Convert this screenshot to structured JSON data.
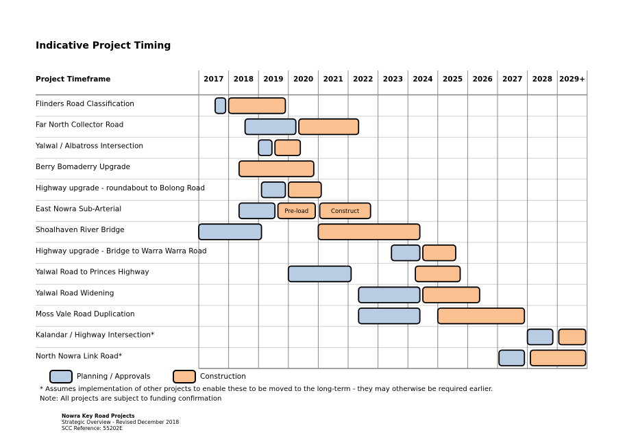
{
  "title": "Indicative Project Timing",
  "colors": {
    "planning": "#b8cce4",
    "construction": "#fac090",
    "grid": "#888888",
    "border": "#000000"
  },
  "chart_data": {
    "type": "gantt",
    "row_header": "Project Timeframe",
    "columns": [
      "2017",
      "2018",
      "2019",
      "2020",
      "2021",
      "2022",
      "2023",
      "2024",
      "2025",
      "2026",
      "2027",
      "2028",
      "2029+"
    ],
    "x_range": [
      2017,
      2030
    ],
    "phases": [
      {
        "key": "planning",
        "label": "Planning / Approvals"
      },
      {
        "key": "construction",
        "label": "Construction"
      }
    ],
    "tasks": [
      {
        "name": "Flinders Road Classification",
        "bars": [
          {
            "phase": "planning",
            "start": 2017.55,
            "end": 2017.9
          },
          {
            "phase": "construction",
            "start": 2018.0,
            "end": 2019.9
          }
        ]
      },
      {
        "name": "Far North Collector Road",
        "bars": [
          {
            "phase": "planning",
            "start": 2018.55,
            "end": 2020.25
          },
          {
            "phase": "construction",
            "start": 2020.35,
            "end": 2022.35
          }
        ]
      },
      {
        "name": "Yalwal / Albatross Intersection",
        "bars": [
          {
            "phase": "planning",
            "start": 2019.0,
            "end": 2019.45
          },
          {
            "phase": "construction",
            "start": 2019.55,
            "end": 2020.4
          }
        ]
      },
      {
        "name": "Berry Bomaderry Upgrade",
        "bars": [
          {
            "phase": "construction",
            "start": 2018.35,
            "end": 2020.85
          }
        ]
      },
      {
        "name": "Highway upgrade - roundabout to Bolong Road",
        "bars": [
          {
            "phase": "planning",
            "start": 2019.1,
            "end": 2019.9
          },
          {
            "phase": "construction",
            "start": 2020.0,
            "end": 2021.1
          }
        ]
      },
      {
        "name": "East Nowra Sub-Arterial",
        "bars": [
          {
            "phase": "planning",
            "start": 2018.35,
            "end": 2019.55
          },
          {
            "phase": "construction",
            "start": 2019.65,
            "end": 2020.9,
            "label": "Pre-load"
          },
          {
            "phase": "construction",
            "start": 2021.05,
            "end": 2022.75,
            "label": "Construct"
          }
        ]
      },
      {
        "name": "Shoalhaven River Bridge",
        "bars": [
          {
            "phase": "planning",
            "start": 2017.0,
            "end": 2019.1
          },
          {
            "phase": "construction",
            "start": 2021.0,
            "end": 2024.4
          }
        ]
      },
      {
        "name": "Highway upgrade - Bridge to Warra Warra Road",
        "bars": [
          {
            "phase": "planning",
            "start": 2023.45,
            "end": 2024.4
          },
          {
            "phase": "construction",
            "start": 2024.5,
            "end": 2025.6
          }
        ]
      },
      {
        "name": "Yalwal Road to Princes Highway",
        "bars": [
          {
            "phase": "planning",
            "start": 2020.0,
            "end": 2022.1
          },
          {
            "phase": "construction",
            "start": 2024.25,
            "end": 2025.75
          }
        ]
      },
      {
        "name": "Yalwal Road Widening",
        "bars": [
          {
            "phase": "planning",
            "start": 2022.35,
            "end": 2024.4
          },
          {
            "phase": "construction",
            "start": 2024.5,
            "end": 2026.4
          }
        ]
      },
      {
        "name": "Moss Vale Road Duplication",
        "bars": [
          {
            "phase": "planning",
            "start": 2022.35,
            "end": 2024.4
          },
          {
            "phase": "construction",
            "start": 2025.0,
            "end": 2027.9
          }
        ]
      },
      {
        "name": "Kalandar / Highway Intersection*",
        "bars": [
          {
            "phase": "planning",
            "start": 2028.0,
            "end": 2028.85
          },
          {
            "phase": "construction",
            "start": 2029.05,
            "end": 2029.95
          }
        ]
      },
      {
        "name": "North Nowra Link Road*",
        "bars": [
          {
            "phase": "planning",
            "start": 2027.05,
            "end": 2027.9
          },
          {
            "phase": "construction",
            "start": 2028.1,
            "end": 2029.95
          }
        ]
      }
    ]
  },
  "notes": [
    "* Assumes implementation of other projects to enable these to be moved to the long-term - they may otherwise be required earlier.",
    "Note: All projects are subject to funding confirmation"
  ],
  "footer": {
    "heading": "Nowra Key Road Projects",
    "line1": "Strategic Overview - Revised December 2018",
    "line2": "SCC Reference: 55202E"
  }
}
